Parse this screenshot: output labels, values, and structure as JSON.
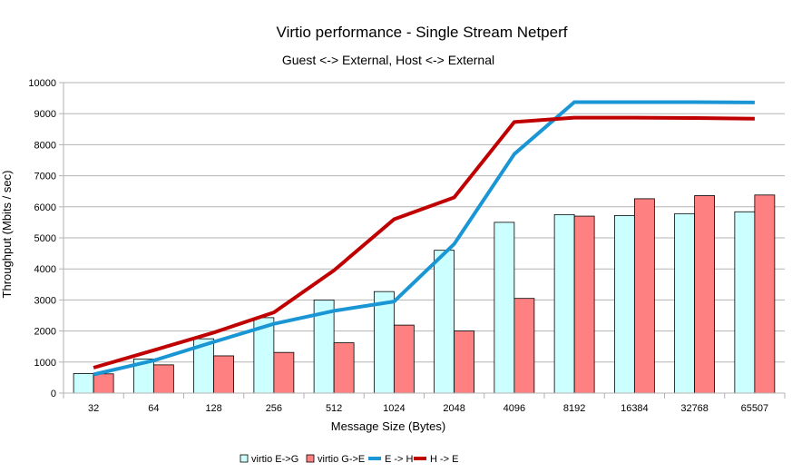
{
  "chart_data": {
    "type": "bar",
    "title": "Virtio performance - Single Stream Netperf",
    "subtitle": "Guest <-> External, Host <-> External",
    "xlabel": "Message Size (Bytes)",
    "ylabel": "Throughput (Mbits / sec)",
    "ylim": [
      0,
      10000
    ],
    "yticks": [
      0,
      1000,
      2000,
      3000,
      4000,
      5000,
      6000,
      7000,
      8000,
      9000,
      10000
    ],
    "grid": true,
    "legend_position": "bottom",
    "categories": [
      "32",
      "64",
      "128",
      "256",
      "512",
      "1024",
      "2048",
      "4096",
      "8192",
      "16384",
      "32768",
      "65507"
    ],
    "series": [
      {
        "name": "virtio E->G",
        "type": "bar",
        "color": "#ccffff",
        "values": [
          630,
          1100,
          1750,
          2430,
          3000,
          3270,
          4600,
          5500,
          5750,
          5720,
          5780,
          5840
        ]
      },
      {
        "name": "virtio G->E",
        "type": "bar",
        "color": "#ff8080",
        "values": [
          620,
          910,
          1200,
          1310,
          1620,
          2190,
          2000,
          3050,
          5700,
          6260,
          6360,
          6380
        ]
      },
      {
        "name": "E -> H",
        "type": "line",
        "color": "#1a96d4",
        "values": [
          600,
          1050,
          1650,
          2230,
          2650,
          2950,
          4800,
          7700,
          9370,
          9370,
          9370,
          9360
        ]
      },
      {
        "name": "H -> E",
        "type": "line",
        "color": "#c00000",
        "values": [
          820,
          1380,
          1950,
          2600,
          3950,
          5600,
          6300,
          8730,
          8870,
          8870,
          8860,
          8840
        ]
      }
    ]
  }
}
